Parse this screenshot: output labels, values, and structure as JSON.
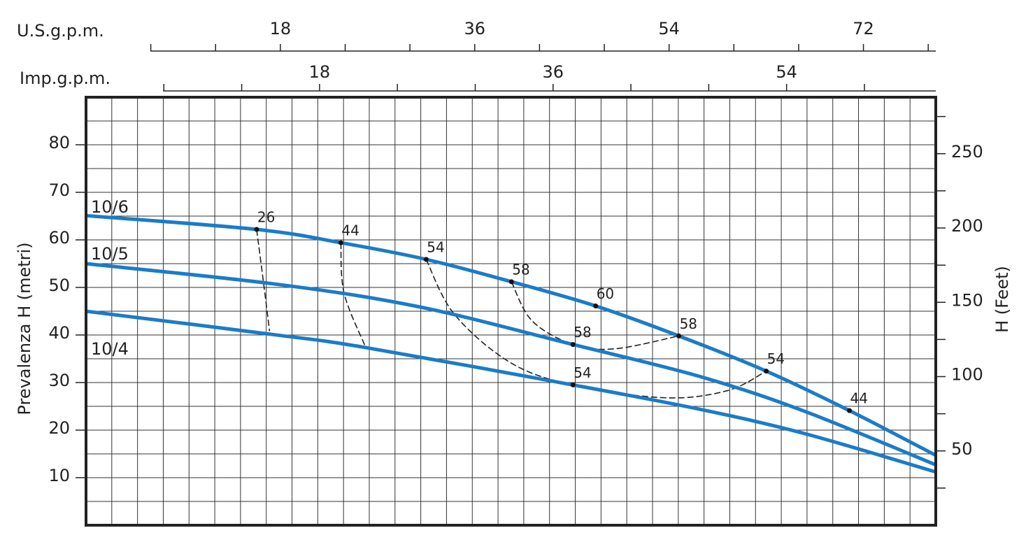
{
  "chart_data": {
    "type": "line",
    "x_axis_label": "U.S.g.p.m.",
    "x2_axis_label": "Imp.g.p.m.",
    "y_axis_label": "Prevalenza H (metri)",
    "y2_axis_label": "H (Feet)",
    "xlim": [
      0,
      78.7
    ],
    "xticks": [
      18,
      36,
      54,
      72
    ],
    "xminor": [
      6,
      12,
      24,
      30,
      42,
      48,
      60,
      66,
      78
    ],
    "x2lim": [
      0,
      65.5
    ],
    "x2ticks": [
      18,
      36,
      54
    ],
    "x2minor": [
      6,
      12,
      24,
      30,
      42,
      48,
      60
    ],
    "ylim": [
      0,
      90
    ],
    "yticks": [
      10,
      20,
      30,
      40,
      50,
      60,
      70,
      80
    ],
    "y2lim": [
      0,
      288
    ],
    "y2ticks": [
      50,
      100,
      150,
      200,
      250
    ],
    "y2minor": [
      25,
      75,
      125,
      175,
      225,
      275
    ],
    "grid": true,
    "series": [
      {
        "name": "10/6",
        "color": "#1a7cc9",
        "x": [
          0,
          15.8,
          23.6,
          31.5,
          39.4,
          47.2,
          54.9,
          63,
          70.7,
          78.7
        ],
        "values": [
          65.1,
          62.2,
          59.4,
          55.9,
          51.2,
          46.1,
          39.8,
          32.4,
          24.1,
          14.7
        ]
      },
      {
        "name": "10/5",
        "color": "#1a7cc9",
        "x": [
          0,
          17.9,
          30.9,
          45.1,
          56.8,
          66.5,
          78.7
        ],
        "values": [
          55,
          50.6,
          45.9,
          38,
          31.3,
          24,
          12.7
        ]
      },
      {
        "name": "10/4",
        "color": "#1a7cc9",
        "x": [
          0,
          17.3,
          25.8,
          45.1,
          56.8,
          66.5,
          78.7
        ],
        "values": [
          45,
          40.1,
          37.4,
          29.5,
          24.4,
          19.3,
          11.2
        ]
      }
    ],
    "efficiency_curves": [
      {
        "x": [
          15.8,
          16.4,
          17.0
        ],
        "values": [
          62.2,
          51.7,
          40.8
        ]
      },
      {
        "x": [
          23.6,
          23.9,
          25.9
        ],
        "values": [
          59.4,
          48.8,
          37.4
        ]
      },
      {
        "x": [
          31.5,
          34.1,
          39.3,
          45.1,
          53.6,
          59.4,
          63
        ],
        "values": [
          55.9,
          44.4,
          34.2,
          29.5,
          26.8,
          28.3,
          32.4
        ]
      },
      {
        "x": [
          39.4,
          41.3,
          45.1,
          49,
          54.9
        ],
        "values": [
          51.2,
          43,
          38,
          37.1,
          39.8
        ]
      }
    ],
    "efficiency_points": [
      {
        "efficiency": 26,
        "x": 15.8,
        "y": 62.2
      },
      {
        "efficiency": 44,
        "x": 23.6,
        "y": 59.4
      },
      {
        "efficiency": 54,
        "x": 31.5,
        "y": 55.9
      },
      {
        "efficiency": 58,
        "x": 39.4,
        "y": 51.2
      },
      {
        "efficiency": 60,
        "x": 47.2,
        "y": 46.1
      },
      {
        "efficiency": 58,
        "x": 54.9,
        "y": 39.8
      },
      {
        "efficiency": 54,
        "x": 63,
        "y": 32.4
      },
      {
        "efficiency": 44,
        "x": 70.7,
        "y": 24.1
      },
      {
        "efficiency": 58,
        "x": 45.1,
        "y": 38
      },
      {
        "efficiency": 54,
        "x": 45.1,
        "y": 29.5
      }
    ]
  }
}
